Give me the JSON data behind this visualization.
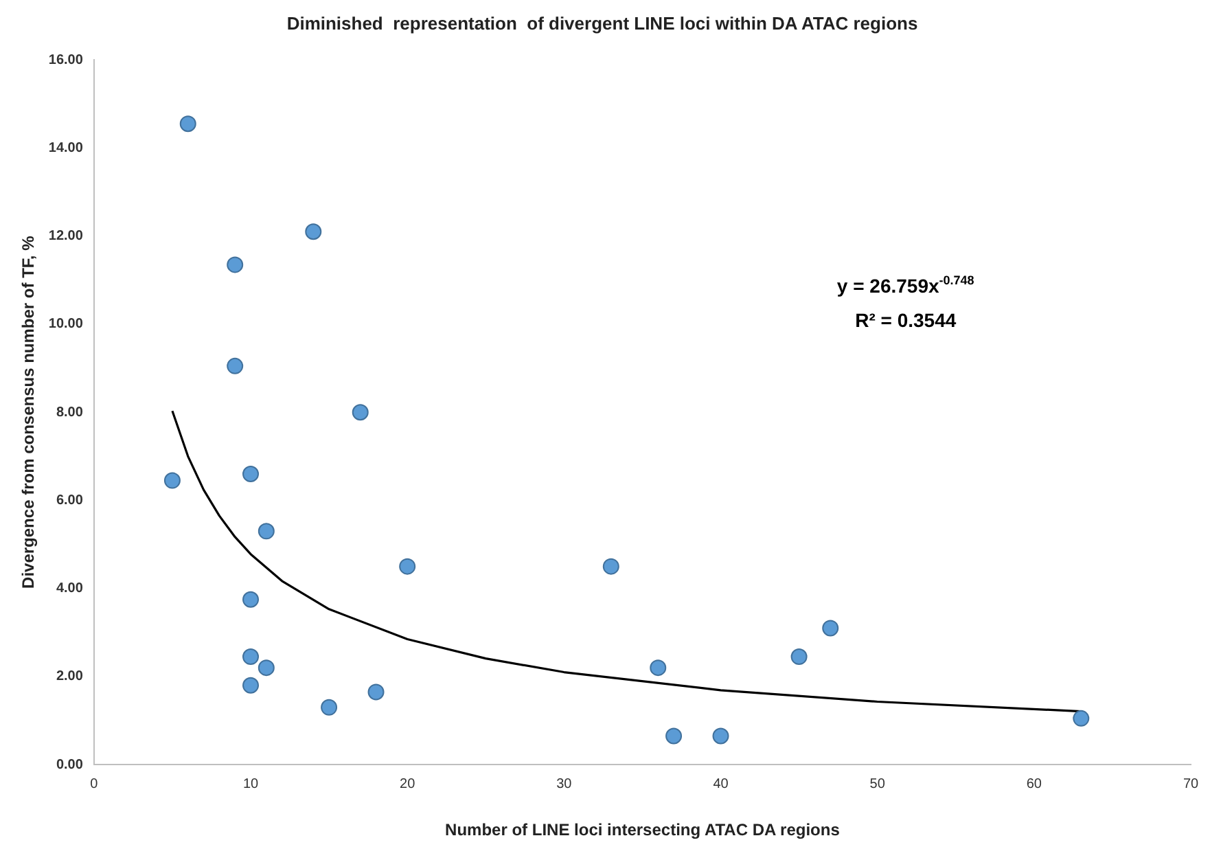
{
  "chart_data": {
    "type": "scatter",
    "title": "Diminished  representation  of divergent LINE loci within DA ATAC regions",
    "xlabel": "Number of LINE loci intersecting ATAC DA regions",
    "ylabel": "Divergence from consensus number of TF, %",
    "series": [
      {
        "type": "scatter",
        "color": "#5b9bd5",
        "marker": "circle",
        "x": [
          5,
          6,
          9,
          9,
          14,
          17,
          10,
          11,
          20,
          33,
          10,
          10,
          11,
          10,
          15,
          18,
          36,
          37,
          40,
          45,
          47,
          63
        ],
        "values": [
          6.45,
          14.55,
          11.35,
          9.05,
          12.1,
          8.0,
          6.6,
          5.3,
          4.5,
          4.5,
          3.75,
          2.45,
          2.2,
          1.8,
          1.3,
          1.65,
          2.2,
          0.65,
          0.65,
          2.45,
          3.1,
          1.05
        ]
      },
      {
        "type": "line",
        "color": "#000000",
        "marker": "none",
        "x": [
          5,
          6,
          7,
          8,
          9,
          10,
          12,
          15,
          20,
          25,
          30,
          40,
          50,
          63
        ],
        "values": [
          8.03,
          7.0,
          6.24,
          5.65,
          5.17,
          4.78,
          4.17,
          3.53,
          2.85,
          2.41,
          2.1,
          1.69,
          1.43,
          1.21
        ]
      }
    ],
    "xlim": [
      0,
      70
    ],
    "xticks": [
      0,
      10,
      20,
      30,
      40,
      50,
      60,
      70
    ],
    "ylim": [
      0,
      16
    ],
    "yticks": [
      {
        "value": 0,
        "label": "0.00"
      },
      {
        "value": 2,
        "label": "2.00"
      },
      {
        "value": 4,
        "label": "4.00"
      },
      {
        "value": 6,
        "label": "6.00"
      },
      {
        "value": 8,
        "label": "8.00"
      },
      {
        "value": 10,
        "label": "10.00"
      },
      {
        "value": 12,
        "label": "12.00"
      },
      {
        "value": 14,
        "label": "14.00"
      },
      {
        "value": 16,
        "label": "16.00"
      }
    ],
    "grid": false,
    "legend": false,
    "annotations": [
      "y = 26.759x$^{-0.748}$",
      "R² = 0.3544"
    ]
  }
}
